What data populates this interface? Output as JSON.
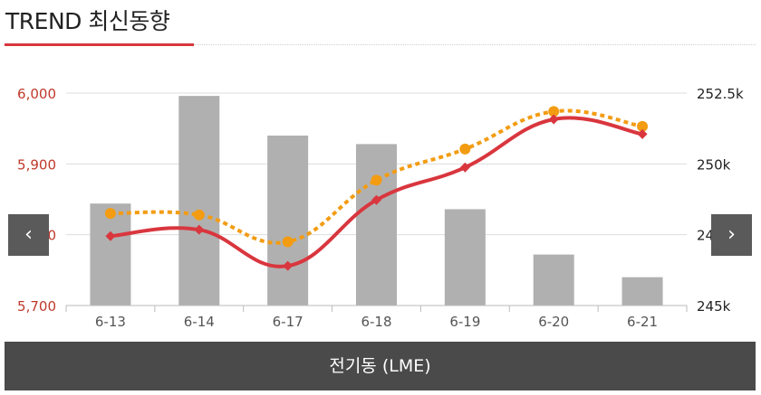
{
  "header": {
    "title": "TREND 최신동향"
  },
  "nav": {
    "prev_label": "‹",
    "next_label": "›",
    "prev_icon": "chevron-left-icon",
    "next_icon": "chevron-right-icon"
  },
  "footer": {
    "label": "전기동 (LME)"
  },
  "colors": {
    "accent": "#d9363e",
    "bar": "#b0b0b0",
    "dotted_line": "#f39c12",
    "solid_line": "#d9363e",
    "footer_bg": "#4a4a4a"
  },
  "chart_data": {
    "type": "bar",
    "categories": [
      "6-13",
      "6-14",
      "6-17",
      "6-18",
      "6-19",
      "6-20",
      "6-21"
    ],
    "y_left": {
      "ylim": [
        5700,
        6000
      ],
      "ticks": [
        "5,700",
        "5,800",
        "5,900",
        "6,000"
      ],
      "tick_values": [
        5700,
        5800,
        5900,
        6000
      ]
    },
    "y_right": {
      "ylim": [
        245,
        252.5
      ],
      "ticks": [
        "245k",
        "247.5k",
        "250k",
        "252.5k"
      ],
      "tick_values": [
        245,
        247.5,
        250,
        252.5
      ]
    },
    "bars": {
      "axis": "right",
      "values": [
        248.6,
        252.4,
        251.0,
        250.7,
        248.4,
        246.8,
        246.0
      ]
    },
    "line_solid": {
      "axis": "left",
      "values": [
        5798,
        5807,
        5756,
        5849,
        5895,
        5963,
        5942
      ]
    },
    "line_dotted": {
      "axis": "left",
      "values": [
        5830,
        5828,
        5790,
        5877,
        5921,
        5974,
        5953
      ]
    },
    "grid": true
  }
}
